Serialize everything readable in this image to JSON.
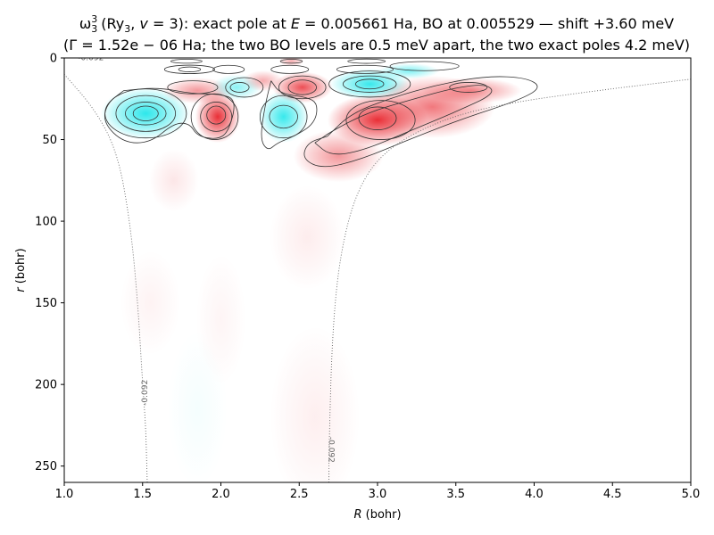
{
  "chart_data": {
    "type": "heatmap",
    "title_line1_prefix": "(Ry",
    "title_line1_tail": ", ",
    "title_v_part": "v",
    "title_line1_mid": " = 3): exact pole at ",
    "title_E_symbol": "E",
    "title_line1_end": " = 0.005661 Ha, BO at 0.005529 — shift +3.60 meV",
    "title_omega": "ω",
    "title_super": "3",
    "title_sub": "3",
    "title_ry_sub": "3",
    "title_line2": "(Γ = 1.52e − 06 Ha; the two BO levels are 0.5 meV apart, the two exact poles 4.2 meV)",
    "xlabel_symbol": "R",
    "xlabel_unit": " (bohr)",
    "ylabel_symbol": "r",
    "ylabel_unit": " (bohr)",
    "xlim": [
      1.0,
      5.0
    ],
    "ylim": [
      260,
      0
    ],
    "y_inverted": true,
    "x_ticks": [
      1.0,
      1.5,
      2.0,
      2.5,
      3.0,
      3.5,
      4.0,
      4.5,
      5.0
    ],
    "x_tick_labels": [
      "1.0",
      "1.5",
      "2.0",
      "2.5",
      "3.0",
      "3.5",
      "4.0",
      "4.5",
      "5.0"
    ],
    "y_ticks": [
      0,
      50,
      100,
      150,
      200,
      250
    ],
    "y_tick_labels": [
      "0",
      "50",
      "100",
      "150",
      "200",
      "250"
    ],
    "colormap": "bwr-style diverging (cyan negative, red positive)",
    "colors": {
      "positive": "#e8242c",
      "negative": "#22e6ea",
      "contour": "#333333",
      "dotted": "#666666"
    },
    "dotted_contour_label": "-0.092",
    "dotted_contours": [
      {
        "label": "-0.092",
        "points": [
          [
            1.0,
            10
          ],
          [
            1.2,
            32
          ],
          [
            1.34,
            58
          ],
          [
            1.42,
            100
          ],
          [
            1.47,
            150
          ],
          [
            1.5,
            200
          ],
          [
            1.52,
            225
          ],
          [
            1.53,
            260
          ]
        ]
      },
      {
        "label": "-0.092",
        "points": [
          [
            2.69,
            260
          ],
          [
            2.69,
            240
          ],
          [
            2.71,
            170
          ],
          [
            2.76,
            120
          ],
          [
            2.87,
            80
          ],
          [
            3.05,
            56
          ],
          [
            3.4,
            38
          ],
          [
            3.8,
            28
          ],
          [
            4.4,
            20
          ],
          [
            5.0,
            13
          ]
        ]
      }
    ],
    "features": [
      {
        "R": 1.52,
        "r": 34,
        "sR": 0.18,
        "sr": 10,
        "amp": -1.0
      },
      {
        "R": 1.85,
        "r": 20,
        "sR": 0.14,
        "sr": 5,
        "amp": 0.5
      },
      {
        "R": 1.98,
        "r": 36,
        "sR": 0.09,
        "sr": 10,
        "amp": 1.0
      },
      {
        "R": 2.1,
        "r": 18,
        "sR": 0.1,
        "sr": 5,
        "amp": -0.55
      },
      {
        "R": 2.27,
        "r": 14,
        "sR": 0.08,
        "sr": 4,
        "amp": 0.4
      },
      {
        "R": 2.4,
        "r": 36,
        "sR": 0.1,
        "sr": 10,
        "amp": -0.95
      },
      {
        "R": 2.52,
        "r": 18,
        "sR": 0.12,
        "sr": 6,
        "amp": 0.85
      },
      {
        "R": 2.95,
        "r": 16,
        "sR": 0.16,
        "sr": 6,
        "amp": -0.95
      },
      {
        "R": 3.0,
        "r": 38,
        "sR": 0.2,
        "sr": 10,
        "amp": 1.0
      },
      {
        "R": 3.35,
        "r": 30,
        "sR": 0.25,
        "sr": 12,
        "amp": 0.65
      },
      {
        "R": 3.6,
        "r": 20,
        "sR": 0.2,
        "sr": 5,
        "amp": 0.55
      },
      {
        "R": 2.75,
        "r": 60,
        "sR": 0.18,
        "sr": 10,
        "amp": 0.5
      },
      {
        "R": 1.7,
        "r": 75,
        "sR": 0.1,
        "sr": 12,
        "amp": 0.12
      },
      {
        "R": 2.55,
        "r": 110,
        "sR": 0.15,
        "sr": 20,
        "amp": 0.09
      },
      {
        "R": 1.55,
        "r": 150,
        "sR": 0.12,
        "sr": 20,
        "amp": 0.06
      },
      {
        "R": 2.0,
        "r": 160,
        "sR": 0.1,
        "sr": 25,
        "amp": 0.05
      },
      {
        "R": 2.6,
        "r": 220,
        "sR": 0.18,
        "sr": 35,
        "amp": 0.08
      },
      {
        "R": 1.85,
        "r": 215,
        "sR": 0.12,
        "sr": 30,
        "amp": -0.05
      },
      {
        "R": 3.2,
        "r": 8,
        "sR": 0.12,
        "sr": 3,
        "amp": -0.6
      },
      {
        "R": 2.45,
        "r": 2,
        "sR": 0.05,
        "sr": 2,
        "amp": 0.4
      }
    ],
    "contour_ellipses": [
      {
        "R": 1.52,
        "r": 34,
        "rR": 0.26,
        "rr": 15
      },
      {
        "R": 1.52,
        "r": 34,
        "rR": 0.19,
        "rr": 11
      },
      {
        "R": 1.52,
        "r": 34,
        "rR": 0.13,
        "rr": 7
      },
      {
        "R": 1.52,
        "r": 34,
        "rR": 0.08,
        "rr": 4.5
      },
      {
        "R": 1.96,
        "r": 36,
        "rR": 0.15,
        "rR2": 0,
        "rr": 14
      },
      {
        "R": 1.97,
        "r": 36,
        "rR": 0.1,
        "rr": 9
      },
      {
        "R": 1.97,
        "r": 35,
        "rR": 0.06,
        "rr": 5.5
      },
      {
        "R": 2.4,
        "r": 36,
        "rR": 0.15,
        "rr": 13
      },
      {
        "R": 2.4,
        "r": 36,
        "rR": 0.09,
        "rr": 7
      },
      {
        "R": 1.82,
        "r": 18,
        "rR": 0.16,
        "rr": 4
      },
      {
        "R": 2.15,
        "r": 18,
        "rR": 0.12,
        "rr": 6
      },
      {
        "R": 2.12,
        "r": 18,
        "rR": 0.06,
        "rr": 3
      },
      {
        "R": 2.52,
        "r": 18,
        "rR": 0.15,
        "rr": 7
      },
      {
        "R": 2.52,
        "r": 18,
        "rR": 0.09,
        "rr": 4.5
      },
      {
        "R": 2.95,
        "r": 16,
        "rR": 0.26,
        "rr": 8
      },
      {
        "R": 2.95,
        "r": 16,
        "rR": 0.17,
        "rr": 5
      },
      {
        "R": 2.95,
        "r": 16,
        "rR": 0.09,
        "rR2": 0,
        "rr": 3
      },
      {
        "R": 3.02,
        "r": 38,
        "rR": 0.22,
        "rr": 12
      },
      {
        "R": 3.0,
        "r": 37,
        "rR": 0.12,
        "rr": 7
      },
      {
        "R": 3.58,
        "r": 18,
        "rR": 0.12,
        "rr": 3
      },
      {
        "R": 1.8,
        "r": 7,
        "rR": 0.16,
        "rr": 2.6
      },
      {
        "R": 1.8,
        "r": 7,
        "rR": 0.07,
        "rr": 1.5
      },
      {
        "R": 2.05,
        "r": 7,
        "rR": 0.1,
        "rr": 2.5
      },
      {
        "R": 2.44,
        "r": 7,
        "rR": 0.12,
        "rr": 2.5
      },
      {
        "R": 2.92,
        "r": 7,
        "rR": 0.18,
        "rr": 2.5
      },
      {
        "R": 3.3,
        "r": 5,
        "rR": 0.22,
        "rr": 2.8
      },
      {
        "R": 1.78,
        "r": 2,
        "rR": 0.1,
        "rr": 1.2
      },
      {
        "R": 2.45,
        "r": 2,
        "rR": 0.07,
        "rr": 1.2
      },
      {
        "R": 2.93,
        "r": 2,
        "rR": 0.12,
        "rr": 1.3
      }
    ],
    "contour_paths": [
      {
        "points": [
          [
            2.32,
            14
          ],
          [
            2.28,
            30
          ],
          [
            2.25,
            50
          ],
          [
            2.3,
            57
          ],
          [
            2.36,
            52
          ],
          [
            2.47,
            48
          ],
          [
            2.6,
            40
          ],
          [
            2.62,
            28
          ],
          [
            2.55,
            24
          ],
          [
            2.38,
            22
          ],
          [
            2.32,
            14
          ]
        ]
      },
      {
        "points": [
          [
            2.68,
            48
          ],
          [
            2.83,
            34
          ],
          [
            3.1,
            24
          ],
          [
            3.4,
            16
          ],
          [
            3.7,
            11
          ],
          [
            3.95,
            12
          ],
          [
            4.05,
            18
          ],
          [
            3.9,
            26
          ],
          [
            3.55,
            37
          ],
          [
            3.2,
            50
          ],
          [
            2.9,
            62
          ],
          [
            2.65,
            68
          ],
          [
            2.52,
            62
          ],
          [
            2.55,
            52
          ],
          [
            2.68,
            48
          ]
        ]
      },
      {
        "points": [
          [
            2.6,
            52
          ],
          [
            2.72,
            44
          ],
          [
            2.95,
            33
          ],
          [
            3.2,
            26
          ],
          [
            3.5,
            18
          ],
          [
            3.7,
            16
          ],
          [
            3.75,
            22
          ],
          [
            3.5,
            33
          ],
          [
            3.2,
            45
          ],
          [
            2.9,
            57
          ],
          [
            2.7,
            60
          ],
          [
            2.6,
            52
          ]
        ]
      },
      {
        "points": [
          [
            1.38,
            20
          ],
          [
            1.6,
            18
          ],
          [
            1.82,
            22
          ],
          [
            2.0,
            22
          ],
          [
            2.1,
            26
          ],
          [
            2.05,
            45
          ],
          [
            1.98,
            50
          ],
          [
            1.85,
            48
          ],
          [
            1.8,
            40
          ],
          [
            1.7,
            40
          ],
          [
            1.55,
            52
          ],
          [
            1.38,
            52
          ],
          [
            1.25,
            40
          ],
          [
            1.27,
            28
          ],
          [
            1.38,
            20
          ]
        ]
      }
    ]
  }
}
